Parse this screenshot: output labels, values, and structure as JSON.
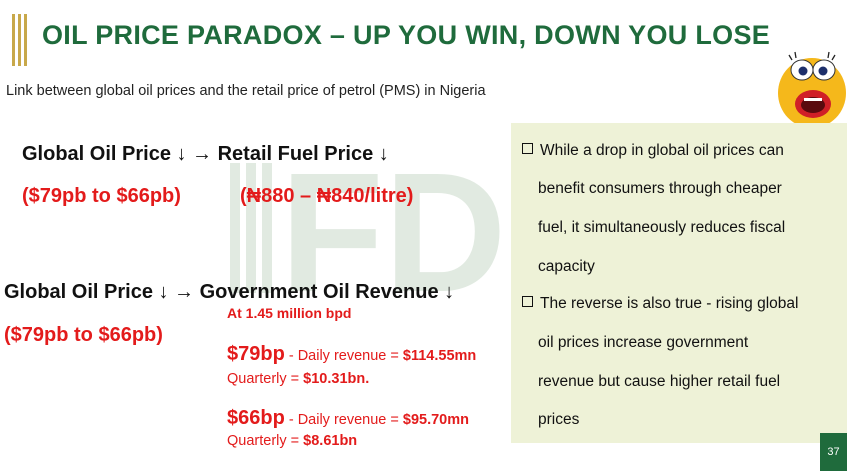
{
  "title": "OIL PRICE PARADOX – UP YOU WIN, DOWN YOU LOSE",
  "subtitle": "Link between global oil prices and the retail price of petrol (PMS) in Nigeria",
  "watermark_text": "FD",
  "section1": {
    "heading": "Global Oil Price ↓  →  Retail Fuel Price ↓",
    "oil_range": "($79pb to $66pb)",
    "fuel_range": "(₦880 – ₦840/litre)"
  },
  "section2": {
    "heading": "Global Oil Price ↓ → Government Oil Revenue ↓",
    "oil_range": "($79pb to $66pb)",
    "production": "At 1.45 million bpd",
    "case79": {
      "price": "$79bp",
      "daily_label": " - Daily revenue = ",
      "daily_value": "$114.55mn",
      "quarterly_label": "Quarterly = ",
      "quarterly_value": "$10.31bn."
    },
    "case66": {
      "price": "$66bp",
      "daily_label": " - Daily revenue = ",
      "daily_value": "$95.70mn",
      "quarterly_label": "Quarterly = ",
      "quarterly_value": "$8.61bn"
    }
  },
  "box": {
    "bullet1": [
      "While a drop in global oil prices can",
      "benefit consumers through cheaper",
      "fuel, it simultaneously reduces fiscal",
      "capacity"
    ],
    "bullet2": [
      "The reverse is also true - rising global",
      "oil prices increase government",
      "revenue but cause higher retail fuel",
      "prices"
    ]
  },
  "page_number": "37",
  "colors": {
    "title_green": "#1f6b3c",
    "accent_red": "#e31b1b",
    "box_bg": "#eef2d7",
    "gold": "#c8a84a"
  },
  "icons": [
    "shocked-face-icon"
  ]
}
